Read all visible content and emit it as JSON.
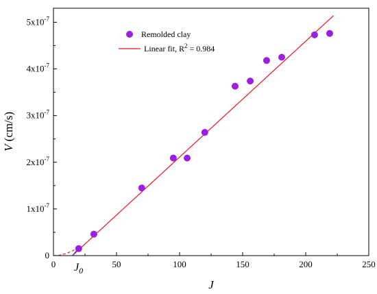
{
  "chart_data": {
    "type": "scatter",
    "xlabel": "J",
    "ylabel": {
      "var": "V",
      "unit": " (cm/s)"
    },
    "xlim": [
      0,
      250
    ],
    "ylim": [
      0,
      5.3e-07
    ],
    "x_ticks": [
      0,
      50,
      100,
      150,
      200,
      250
    ],
    "x_tick_labels": [
      "0",
      "50",
      "100",
      "150",
      "200",
      "250"
    ],
    "y_ticks": [
      0,
      1e-07,
      2e-07,
      3e-07,
      4e-07,
      5e-07
    ],
    "y_tick_labels": [
      {
        "base": "0",
        "exp": ""
      },
      {
        "base": "1x10",
        "exp": "-7"
      },
      {
        "base": "2x10",
        "exp": "-7"
      },
      {
        "base": "3x10",
        "exp": "-7"
      },
      {
        "base": "4x10",
        "exp": "-7"
      },
      {
        "base": "5x10",
        "exp": "-7"
      }
    ],
    "grid": false,
    "legend_position": "top-left",
    "series": [
      {
        "name": "Remolded clay",
        "type": "scatter",
        "color": "#9b1fe0",
        "x": [
          20,
          32,
          70,
          95,
          106,
          120,
          144,
          156,
          169,
          181,
          207,
          219
        ],
        "y": [
          1.5e-08,
          4.6e-08,
          1.45e-07,
          2.09e-07,
          2.09e-07,
          2.64e-07,
          3.63e-07,
          3.74e-07,
          4.18e-07,
          4.25e-07,
          4.73e-07,
          4.76e-07
        ]
      },
      {
        "name": "Linear fit, R",
        "name_sup": "2",
        "name_suffix": " = 0.984",
        "type": "line",
        "color": "#e8141c",
        "x": [
          15,
          222
        ],
        "y": [
          0,
          5.14e-07
        ]
      }
    ],
    "extrapolation": {
      "color": "#e8141c",
      "x": [
        0,
        5,
        10,
        15,
        20
      ],
      "y": [
        0,
        1.2e-09,
        4.5e-09,
        1e-08,
        1.8e-08
      ]
    },
    "tangent": {
      "color": "#1f3fcc",
      "x": [
        15,
        21
      ],
      "y": [
        0,
        1.9e-08
      ]
    },
    "annotation": {
      "text": "J",
      "sub": "0",
      "x": 15
    }
  }
}
